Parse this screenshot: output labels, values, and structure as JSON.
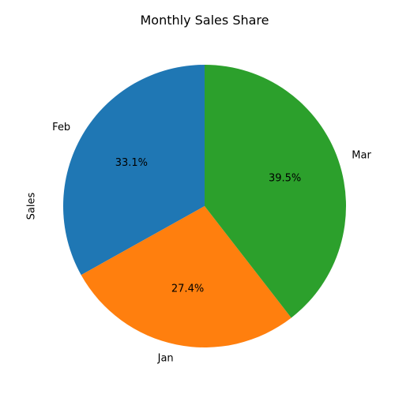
{
  "chart_data": {
    "type": "pie",
    "title": "Monthly Sales Share",
    "ylabel": "Sales",
    "start_angle_deg": 90,
    "direction": "counterclockwise",
    "slices": [
      {
        "label": "Feb",
        "percent": 33.1,
        "percent_label": "33.1%",
        "color": "#1f77b4"
      },
      {
        "label": "Jan",
        "percent": 27.4,
        "percent_label": "27.4%",
        "color": "#ff7f0e"
      },
      {
        "label": "Mar",
        "percent": 39.5,
        "percent_label": "39.5%",
        "color": "#2ca02c"
      }
    ]
  }
}
